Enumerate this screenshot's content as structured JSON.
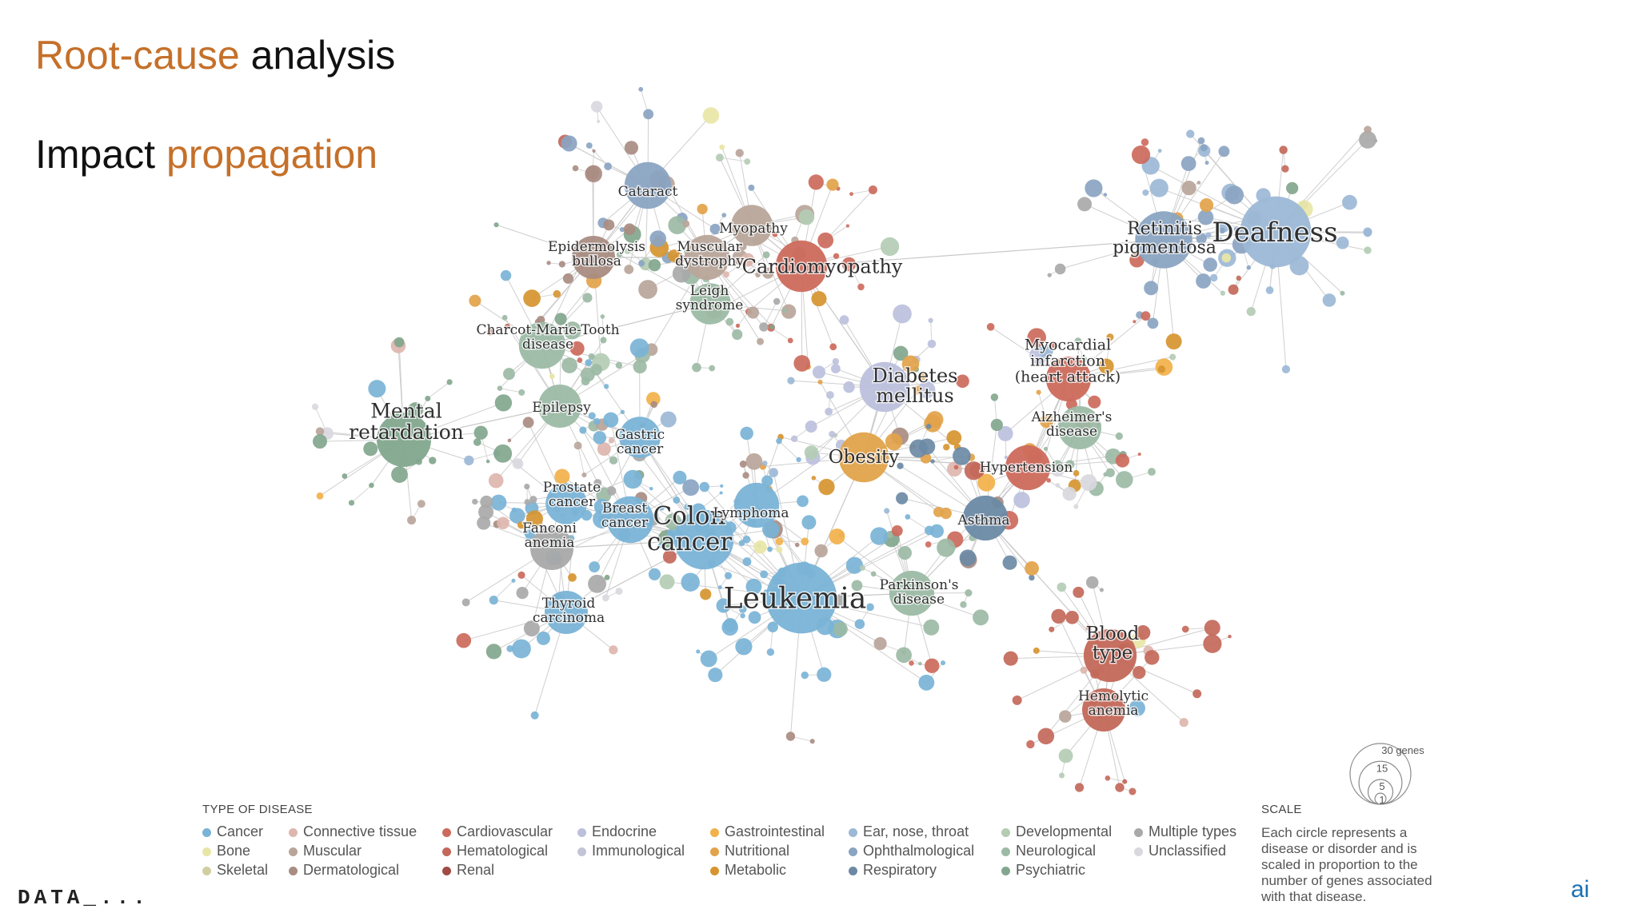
{
  "headline": {
    "line1_accent": "Root-cause",
    "line1_rest": " analysis",
    "line2_lead": "Impact ",
    "line2_accent": "propagation"
  },
  "colors": {
    "accent": "#c5702a",
    "cancer": "#7ab3d6",
    "bone": "#e8e6a6",
    "skeletal": "#d0cfa2",
    "connective": "#ddb6ae",
    "muscular": "#b9a59a",
    "dermatological": "#a98c82",
    "cardiovascular": "#cc6a5c",
    "hematological": "#c3685a",
    "renal": "#a04b44",
    "endocrine": "#bcc0dc",
    "immunological": "#c3c4d6",
    "gastrointestinal": "#f2b14a",
    "nutritional": "#e2a34a",
    "metabolic": "#d69530",
    "ent": "#9cb8d6",
    "ophthalmological": "#8aa4c2",
    "respiratory": "#6c8aa5",
    "developmental": "#b4ccb4",
    "neurological": "#9cbaa5",
    "psychiatric": "#82a68d",
    "multiple": "#a9a9a9",
    "unclassified": "#d8d8de"
  },
  "network": {
    "nodes": [
      {
        "id": "deafness",
        "label": "Deafness",
        "genes": 30,
        "category": "ent"
      },
      {
        "id": "retinitis",
        "label": "Retinitis pigmentosa",
        "genes": 18,
        "category": "ophthalmological"
      },
      {
        "id": "cardiomyopathy",
        "label": "Cardiomyopathy",
        "genes": 14,
        "category": "cardiovascular"
      },
      {
        "id": "cataract",
        "label": "Cataract",
        "genes": 11,
        "category": "ophthalmological"
      },
      {
        "id": "myopathy",
        "label": "Myopathy",
        "genes": 8,
        "category": "muscular"
      },
      {
        "id": "muscular_dystrophy",
        "label": "Muscular dystrophy",
        "genes": 10,
        "category": "muscular"
      },
      {
        "id": "epidermolysis",
        "label": "Epidermolysis bullosa",
        "genes": 9,
        "category": "dermatological"
      },
      {
        "id": "leigh",
        "label": "Leigh syndrome",
        "genes": 8,
        "category": "neurological"
      },
      {
        "id": "cmt",
        "label": "Charcot-Marie-Tooth disease",
        "genes": 11,
        "category": "neurological"
      },
      {
        "id": "epilepsy",
        "label": "Epilepsy",
        "genes": 9,
        "category": "neurological"
      },
      {
        "id": "mental_retardation",
        "label": "Mental retardation",
        "genes": 16,
        "category": "psychiatric"
      },
      {
        "id": "diabetes",
        "label": "Diabetes mellitus",
        "genes": 13,
        "category": "endocrine"
      },
      {
        "id": "obesity",
        "label": "Obesity",
        "genes": 13,
        "category": "nutritional"
      },
      {
        "id": "myocardial",
        "label": "Myocardial infarction (heart attack)",
        "genes": 10,
        "category": "cardiovascular"
      },
      {
        "id": "alzheimer",
        "label": "Alzheimer's disease",
        "genes": 9,
        "category": "neurological"
      },
      {
        "id": "hypertension",
        "label": "Hypertension",
        "genes": 10,
        "category": "cardiovascular"
      },
      {
        "id": "asthma",
        "label": "Asthma",
        "genes": 10,
        "category": "respiratory"
      },
      {
        "id": "gastric",
        "label": "Gastric cancer",
        "genes": 8,
        "category": "cancer"
      },
      {
        "id": "prostate",
        "label": "Prostate cancer",
        "genes": 8,
        "category": "cancer"
      },
      {
        "id": "breast",
        "label": "Breast cancer",
        "genes": 11,
        "category": "cancer"
      },
      {
        "id": "colon",
        "label": "Colon cancer",
        "genes": 20,
        "category": "cancer"
      },
      {
        "id": "lymphoma",
        "label": "Lymphoma",
        "genes": 10,
        "category": "cancer"
      },
      {
        "id": "fanconi",
        "label": "Fanconi anemia",
        "genes": 9,
        "category": "multiple"
      },
      {
        "id": "thyroid",
        "label": "Thyroid carcinoma",
        "genes": 9,
        "category": "cancer"
      },
      {
        "id": "leukemia",
        "label": "Leukemia",
        "genes": 30,
        "category": "cancer"
      },
      {
        "id": "parkinson",
        "label": "Parkinson's disease",
        "genes": 10,
        "category": "neurological"
      },
      {
        "id": "blood_type",
        "label": "Blood type",
        "genes": 15,
        "category": "hematological"
      },
      {
        "id": "hemolytic",
        "label": "Hemolytic anemia",
        "genes": 9,
        "category": "hematological"
      }
    ]
  },
  "legend": {
    "title": "TYPE OF DISEASE",
    "columns": [
      [
        {
          "label": "Cancer",
          "color": "#7ab3d6"
        },
        {
          "label": "Bone",
          "color": "#e8e6a6"
        },
        {
          "label": "Skeletal",
          "color": "#d0cfa2"
        }
      ],
      [
        {
          "label": "Connective tissue",
          "color": "#ddb6ae"
        },
        {
          "label": "Muscular",
          "color": "#b9a59a"
        },
        {
          "label": "Dermatological",
          "color": "#a98c82"
        }
      ],
      [
        {
          "label": "Cardiovascular",
          "color": "#cc6a5c"
        },
        {
          "label": "Hematological",
          "color": "#c3685a"
        },
        {
          "label": "Renal",
          "color": "#a04b44"
        }
      ],
      [
        {
          "label": "Endocrine",
          "color": "#bcc0dc"
        },
        {
          "label": "Immunological",
          "color": "#c3c4d6"
        }
      ],
      [
        {
          "label": "Gastrointestinal",
          "color": "#f2b14a"
        },
        {
          "label": "Nutritional",
          "color": "#e2a34a"
        },
        {
          "label": "Metabolic",
          "color": "#d69530"
        }
      ],
      [
        {
          "label": "Ear, nose, throat",
          "color": "#9cb8d6"
        },
        {
          "label": "Ophthalmological",
          "color": "#8aa4c2"
        },
        {
          "label": "Respiratory",
          "color": "#6c8aa5"
        }
      ],
      [
        {
          "label": "Developmental",
          "color": "#b4ccb4"
        },
        {
          "label": "Neurological",
          "color": "#9cbaa5"
        },
        {
          "label": "Psychiatric",
          "color": "#82a68d"
        }
      ],
      [
        {
          "label": "Multiple types",
          "color": "#a9a9a9"
        },
        {
          "label": "Unclassified",
          "color": "#d8d8de"
        }
      ]
    ]
  },
  "scale": {
    "title": "SCALE",
    "text": "Each circle represents a disease or disorder and is scaled in proportion to the number of genes associated with that disease.",
    "circles": [
      {
        "genes": 30,
        "label": "30 genes"
      },
      {
        "genes": 15,
        "label": "15"
      },
      {
        "genes": 5,
        "label": "5"
      },
      {
        "genes": 1,
        "label": "1"
      }
    ]
  },
  "footer": {
    "left": "DATA_...",
    "right": "ai"
  }
}
